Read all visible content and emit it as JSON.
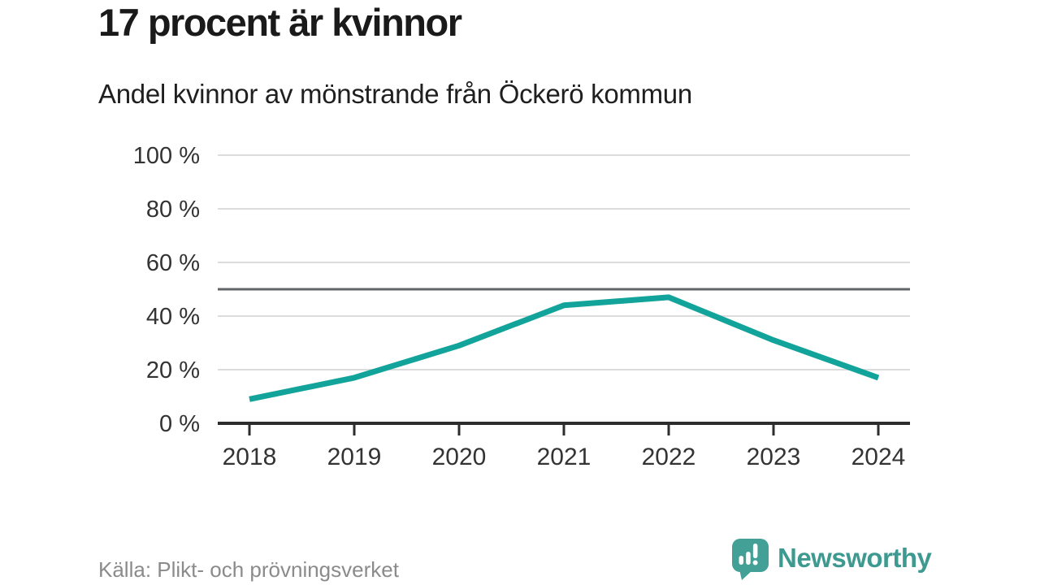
{
  "header": {
    "title": "17 procent är kvinnor",
    "subtitle": "Andel kvinnor av mönstrande från Öckerö kommun"
  },
  "chart_data": {
    "type": "line",
    "title": "17 procent är kvinnor",
    "subtitle": "Andel kvinnor av mönstrande från Öckerö kommun",
    "x": [
      2018,
      2019,
      2020,
      2021,
      2022,
      2023,
      2024
    ],
    "series": [
      {
        "name": "Andel kvinnor av mönstrande",
        "values": [
          9,
          17,
          29,
          44,
          47,
          31,
          17
        ]
      }
    ],
    "xlabel": "",
    "ylabel": "",
    "ylim": [
      0,
      100
    ],
    "y_ticks": [
      0,
      20,
      40,
      60,
      80,
      100
    ],
    "y_tick_suffix": " %",
    "reference_line": 50,
    "grid": "horizontal",
    "legend": "none",
    "line_color": "#12a39a"
  },
  "footer": {
    "source": "Källa: Plikt- och prövningsverket"
  },
  "brand": {
    "name": "Newsworthy",
    "icon": "newsworthy-chart-bubble-icon",
    "color": "#3e9a90",
    "icon_color": "#43a096"
  },
  "colors": {
    "background": "#ffffff",
    "title_text": "#1a1a1a",
    "axis_label_text": "#333333",
    "gridline": "#dcdcdc",
    "reference_line": "#606468",
    "axis_line": "#2d2d2d",
    "source_text": "#8b8b8b"
  }
}
